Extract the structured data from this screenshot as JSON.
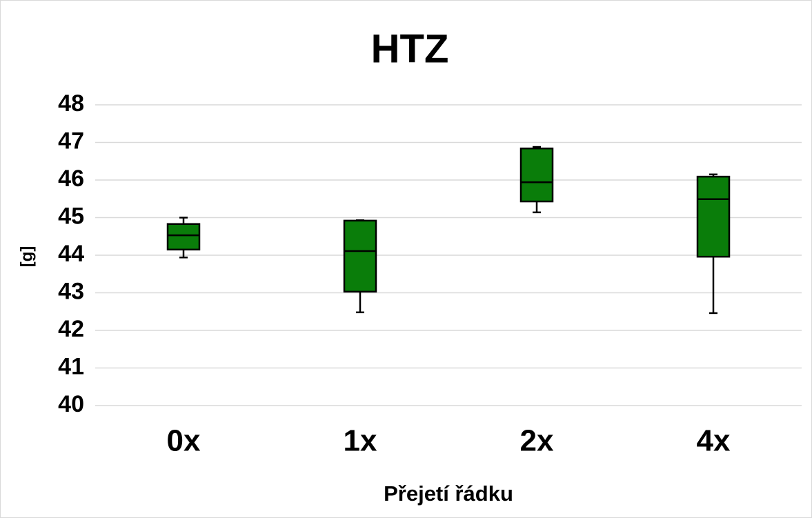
{
  "chart_data": {
    "type": "box",
    "title": "HTZ",
    "y_label": "[g]",
    "x_label": "Přejetí řádku",
    "categories": [
      "0x",
      "1x",
      "2x",
      "4x"
    ],
    "color": "#0a7d0a",
    "boxes": [
      {
        "min": 43.94,
        "q1": 44.15,
        "median": 44.53,
        "q3": 44.83,
        "max": 45.0
      },
      {
        "min": 42.48,
        "q1": 43.03,
        "median": 44.11,
        "q3": 44.92,
        "max": 44.93
      },
      {
        "min": 45.14,
        "q1": 45.43,
        "median": 45.94,
        "q3": 46.84,
        "max": 46.88
      },
      {
        "min": 42.46,
        "q1": 43.96,
        "median": 45.49,
        "q3": 46.09,
        "max": 46.15
      }
    ],
    "ylim": [
      40,
      48
    ],
    "yticks": [
      40,
      41,
      42,
      43,
      44,
      45,
      46,
      47,
      48
    ],
    "grid": true
  }
}
